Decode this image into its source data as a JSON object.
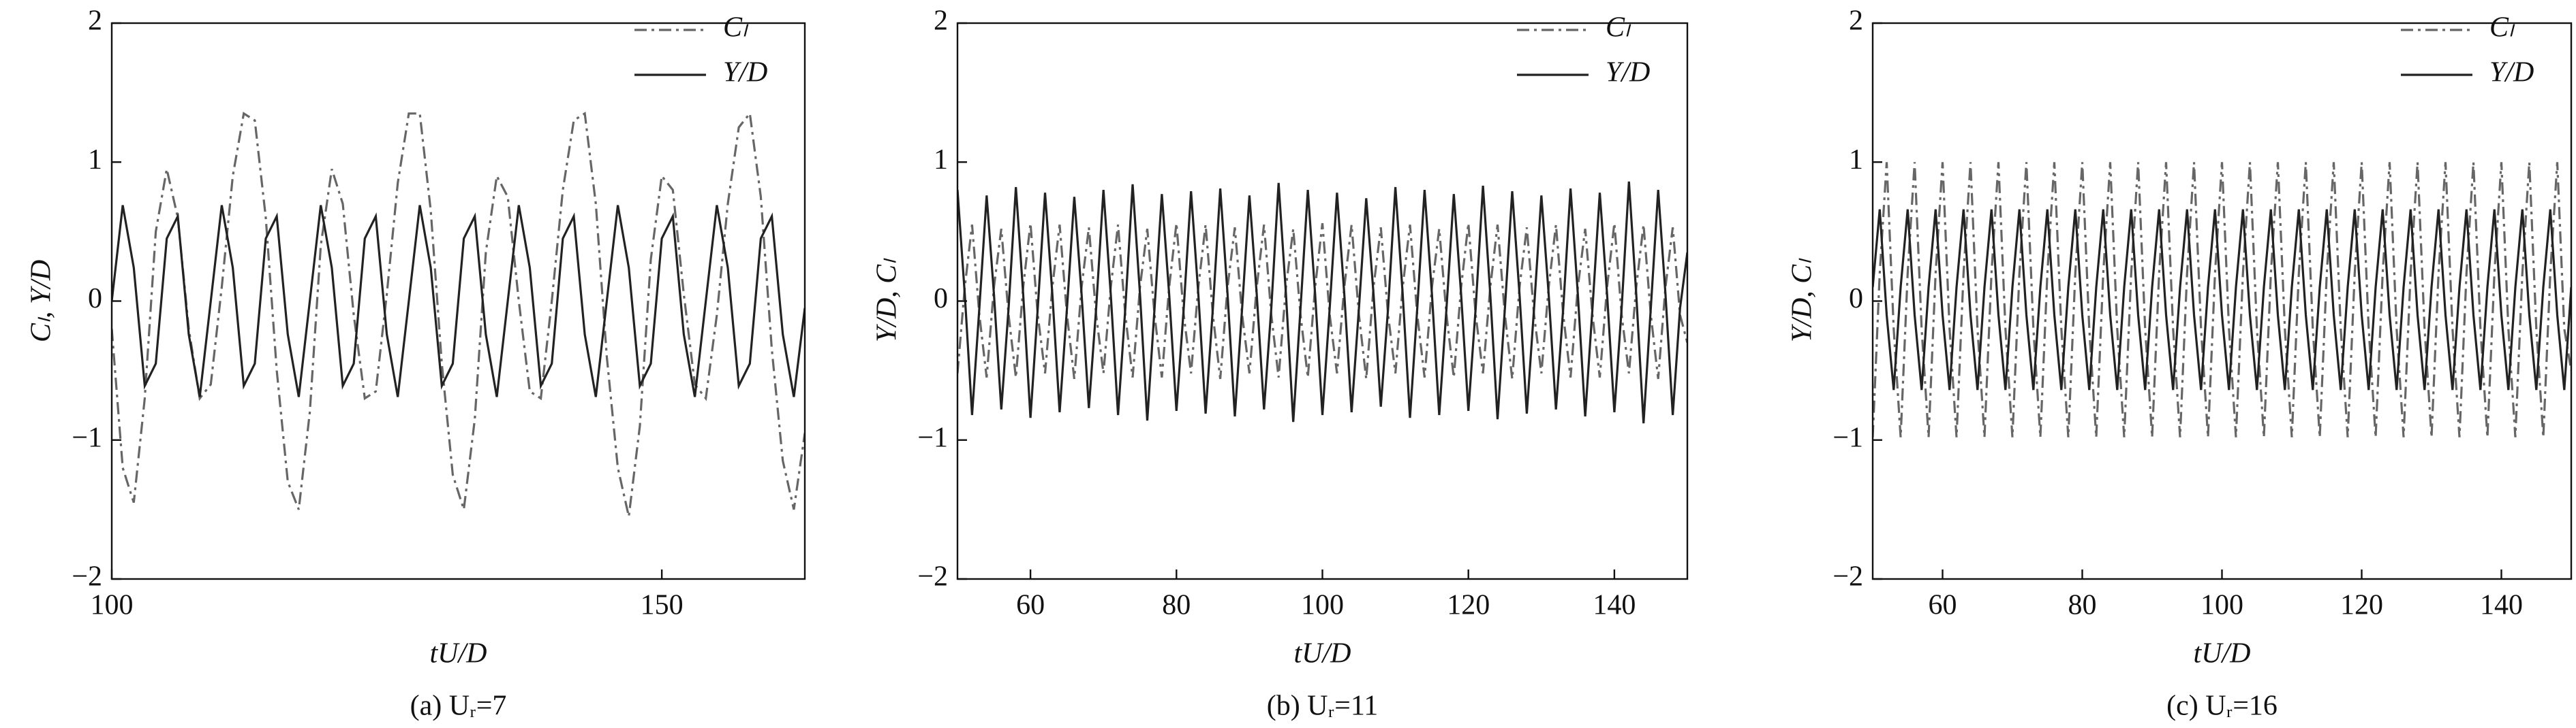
{
  "chart_data": [
    {
      "type": "line",
      "ylabel": "Cₗ, Y/D",
      "xlabel": "tU/D",
      "caption": "(a) Uᵣ=7",
      "legend": "upper right",
      "xlim": [
        100,
        163
      ],
      "xticks": [
        100,
        150
      ],
      "ylim": [
        -2,
        2
      ],
      "yticks": [
        {
          "value": -2,
          "label": "−2"
        },
        {
          "value": -1,
          "label": "−1"
        },
        0,
        1,
        2
      ],
      "x": [
        100,
        101,
        102,
        103,
        104,
        105,
        106,
        107,
        108,
        109,
        110,
        111,
        112,
        113,
        114,
        115,
        116,
        117,
        118,
        119,
        120,
        121,
        122,
        123,
        124,
        125,
        126,
        127,
        128,
        129,
        130,
        131,
        132,
        133,
        134,
        135,
        136,
        137,
        138,
        139,
        140,
        141,
        142,
        143,
        144,
        145,
        146,
        147,
        148,
        149,
        150,
        151,
        152,
        153,
        154,
        155,
        156,
        157,
        158,
        159,
        160,
        161,
        162,
        163
      ],
      "series": [
        {
          "name": "Cₗ",
          "color": "#666666",
          "dash": "dashdot",
          "values": [
            -0.2,
            -1.2,
            -1.45,
            -0.7,
            0.5,
            0.95,
            0.6,
            -0.2,
            -0.7,
            -0.6,
            0.1,
            0.9,
            1.35,
            1.3,
            0.6,
            -0.5,
            -1.3,
            -1.5,
            -0.8,
            0.4,
            0.95,
            0.7,
            -0.1,
            -0.7,
            -0.65,
            0.05,
            0.85,
            1.35,
            1.35,
            0.65,
            -0.45,
            -1.25,
            -1.5,
            -0.85,
            0.35,
            0.9,
            0.75,
            0,
            -0.65,
            -0.7,
            0,
            0.8,
            1.3,
            1.35,
            0.7,
            -0.4,
            -1.2,
            -1.55,
            -0.9,
            0.3,
            0.9,
            0.8,
            0.05,
            -0.6,
            -0.7,
            -0.1,
            0.7,
            1.25,
            1.35,
            0.75,
            -0.35,
            -1.15,
            -1.5,
            -0.95
          ]
        },
        {
          "name": "Y/D",
          "color": "#222222",
          "dash": "solid",
          "values": [
            0,
            0.69,
            0.24,
            -0.61,
            -0.45,
            0.45,
            0.61,
            -0.24,
            -0.69,
            0,
            0.69,
            0.24,
            -0.61,
            -0.45,
            0.45,
            0.61,
            -0.24,
            -0.69,
            0,
            0.69,
            0.24,
            -0.61,
            -0.45,
            0.45,
            0.61,
            -0.24,
            -0.69,
            0,
            0.69,
            0.24,
            -0.61,
            -0.45,
            0.45,
            0.61,
            -0.24,
            -0.69,
            0,
            0.69,
            0.24,
            -0.61,
            -0.45,
            0.45,
            0.61,
            -0.24,
            -0.69,
            0,
            0.69,
            0.24,
            -0.61,
            -0.45,
            0.45,
            0.61,
            -0.24,
            -0.69,
            0,
            0.69,
            0.24,
            -0.61,
            -0.45,
            0.45,
            0.61,
            -0.24,
            -0.69,
            -0.05
          ]
        }
      ]
    },
    {
      "type": "line",
      "ylabel": "Y/D, Cₗ",
      "xlabel": "tU/D",
      "caption": "(b) Uᵣ=11",
      "legend": "upper right",
      "xlim": [
        50,
        150
      ],
      "xticks": [
        60,
        80,
        100,
        120,
        140
      ],
      "ylim": [
        -2,
        2
      ],
      "yticks": [
        {
          "value": -2,
          "label": "−2"
        },
        {
          "value": -1,
          "label": "−1"
        },
        0,
        1,
        2
      ],
      "x": [
        50,
        51,
        52,
        53,
        54,
        55,
        56,
        57,
        58,
        59,
        60,
        61,
        62,
        63,
        64,
        65,
        66,
        67,
        68,
        69,
        70,
        71,
        72,
        73,
        74,
        75,
        76,
        77,
        78,
        79,
        80,
        81,
        82,
        83,
        84,
        85,
        86,
        87,
        88,
        89,
        90,
        91,
        92,
        93,
        94,
        95,
        96,
        97,
        98,
        99,
        100,
        101,
        102,
        103,
        104,
        105,
        106,
        107,
        108,
        109,
        110,
        111,
        112,
        113,
        114,
        115,
        116,
        117,
        118,
        119,
        120,
        121,
        122,
        123,
        124,
        125,
        126,
        127,
        128,
        129,
        130,
        131,
        132,
        133,
        134,
        135,
        136,
        137,
        138,
        139,
        140,
        141,
        142,
        143,
        144,
        145,
        146,
        147,
        148,
        149,
        150
      ],
      "series": [
        {
          "name": "Cₗ",
          "color": "#666666",
          "dash": "dashdot",
          "values": [
            -0.52,
            0.1,
            0.55,
            -0.1,
            -0.55,
            0.1,
            0.52,
            -0.1,
            -0.55,
            0.1,
            0.56,
            -0.1,
            -0.52,
            0.1,
            0.55,
            -0.1,
            -0.56,
            0.1,
            0.53,
            -0.1,
            -0.52,
            0.1,
            0.55,
            -0.1,
            -0.55,
            0.1,
            0.52,
            -0.1,
            -0.55,
            0.1,
            0.56,
            -0.1,
            -0.52,
            0.1,
            0.55,
            -0.1,
            -0.56,
            0.1,
            0.53,
            -0.1,
            -0.52,
            0.1,
            0.55,
            -0.1,
            -0.55,
            0.1,
            0.52,
            -0.1,
            -0.55,
            0.1,
            0.56,
            -0.1,
            -0.52,
            0.1,
            0.55,
            -0.1,
            -0.56,
            0.1,
            0.53,
            -0.1,
            -0.52,
            0.1,
            0.55,
            -0.1,
            -0.55,
            0.1,
            0.52,
            -0.1,
            -0.55,
            0.1,
            0.56,
            -0.1,
            -0.52,
            0.1,
            0.55,
            -0.1,
            -0.56,
            0.1,
            0.53,
            -0.1,
            -0.52,
            0.1,
            0.55,
            -0.1,
            -0.55,
            0.1,
            0.52,
            -0.1,
            -0.55,
            0.1,
            0.56,
            -0.1,
            -0.52,
            0.1,
            0.55,
            -0.1,
            -0.56,
            0.1,
            0.53,
            -0.1,
            -0.3
          ]
        },
        {
          "name": "Y/D",
          "color": "#222222",
          "dash": "solid",
          "values": [
            0.8,
            0.05,
            -0.82,
            -0.05,
            0.76,
            0.05,
            -0.78,
            -0.05,
            0.82,
            0.05,
            -0.84,
            -0.05,
            0.78,
            0.05,
            -0.8,
            -0.05,
            0.75,
            0.05,
            -0.77,
            -0.05,
            0.8,
            0.05,
            -0.82,
            -0.05,
            0.84,
            0.05,
            -0.86,
            -0.05,
            0.77,
            0.05,
            -0.79,
            -0.05,
            0.79,
            0.05,
            -0.81,
            -0.05,
            0.81,
            0.05,
            -0.83,
            -0.05,
            0.76,
            0.05,
            -0.78,
            -0.05,
            0.85,
            0.05,
            -0.87,
            -0.05,
            0.8,
            0.05,
            -0.82,
            -0.05,
            0.78,
            0.05,
            -0.8,
            -0.05,
            0.74,
            0.05,
            -0.76,
            -0.05,
            0.82,
            0.05,
            -0.84,
            -0.05,
            0.8,
            0.05,
            -0.82,
            -0.05,
            0.77,
            0.05,
            -0.79,
            -0.05,
            0.83,
            0.05,
            -0.85,
            -0.05,
            0.79,
            0.05,
            -0.81,
            -0.05,
            0.76,
            0.05,
            -0.78,
            -0.05,
            0.81,
            0.05,
            -0.83,
            -0.05,
            0.78,
            0.05,
            -0.8,
            -0.05,
            0.86,
            0.05,
            -0.88,
            -0.05,
            0.8,
            0.05,
            -0.82,
            -0.05,
            0.35
          ]
        }
      ]
    },
    {
      "type": "line",
      "ylabel": "Y/D, Cₗ",
      "xlabel": "tU/D",
      "caption": "(c) Uᵣ=16",
      "legend": "upper right",
      "xlim": [
        50,
        150
      ],
      "xticks": [
        60,
        80,
        100,
        120,
        140
      ],
      "ylim": [
        -2,
        2
      ],
      "yticks": [
        {
          "value": -2,
          "label": "−2"
        },
        {
          "value": -1,
          "label": "−1"
        },
        0,
        1,
        2
      ],
      "x": [
        50,
        51,
        52,
        53,
        54,
        55,
        56,
        57,
        58,
        59,
        60,
        61,
        62,
        63,
        64,
        65,
        66,
        67,
        68,
        69,
        70,
        71,
        72,
        73,
        74,
        75,
        76,
        77,
        78,
        79,
        80,
        81,
        82,
        83,
        84,
        85,
        86,
        87,
        88,
        89,
        90,
        91,
        92,
        93,
        94,
        95,
        96,
        97,
        98,
        99,
        100,
        101,
        102,
        103,
        104,
        105,
        106,
        107,
        108,
        109,
        110,
        111,
        112,
        113,
        114,
        115,
        116,
        117,
        118,
        119,
        120,
        121,
        122,
        123,
        124,
        125,
        126,
        127,
        128,
        129,
        130,
        131,
        132,
        133,
        134,
        135,
        136,
        137,
        138,
        139,
        140,
        141,
        142,
        143,
        144,
        145,
        146,
        147,
        148,
        149,
        150
      ],
      "series": [
        {
          "name": "Cₗ",
          "color": "#666666",
          "dash": "dashdot",
          "values": [
            -0.98,
            0.2,
            1.0,
            -0.2,
            -0.98,
            0.2,
            1.0,
            -0.2,
            -0.98,
            0.2,
            1.0,
            -0.2,
            -0.98,
            0.2,
            1.0,
            -0.2,
            -0.98,
            0.2,
            1.0,
            -0.2,
            -0.98,
            0.2,
            1.0,
            -0.2,
            -0.98,
            0.2,
            1.0,
            -0.2,
            -0.98,
            0.2,
            1.0,
            -0.2,
            -0.98,
            0.2,
            1.0,
            -0.2,
            -0.98,
            0.2,
            1.0,
            -0.2,
            -0.98,
            0.2,
            1.0,
            -0.2,
            -0.98,
            0.2,
            1.0,
            -0.2,
            -0.98,
            0.2,
            1.0,
            -0.2,
            -0.98,
            0.2,
            1.0,
            -0.2,
            -0.98,
            0.2,
            1.0,
            -0.2,
            -0.98,
            0.2,
            1.0,
            -0.2,
            -0.98,
            0.2,
            1.0,
            -0.2,
            -0.98,
            0.2,
            1.0,
            -0.2,
            -0.98,
            0.2,
            1.0,
            -0.2,
            -0.98,
            0.2,
            1.0,
            -0.2,
            -0.98,
            0.2,
            1.0,
            -0.2,
            -0.98,
            0.2,
            1.0,
            -0.2,
            -0.98,
            0.2,
            1.0,
            -0.2,
            -0.98,
            0.2,
            1.0,
            -0.2,
            -0.98,
            0.2,
            1.0,
            -0.2,
            -0.5
          ]
        },
        {
          "name": "Y/D",
          "color": "#222222",
          "dash": "solid",
          "values": [
            0.1,
            0.66,
            -0.1,
            -0.64,
            0.1,
            0.66,
            -0.1,
            -0.64,
            0.1,
            0.66,
            -0.1,
            -0.64,
            0.1,
            0.66,
            -0.1,
            -0.64,
            0.1,
            0.66,
            -0.1,
            -0.64,
            0.1,
            0.66,
            -0.1,
            -0.64,
            0.1,
            0.66,
            -0.1,
            -0.64,
            0.1,
            0.66,
            -0.1,
            -0.64,
            0.1,
            0.66,
            -0.1,
            -0.64,
            0.1,
            0.66,
            -0.1,
            -0.64,
            0.1,
            0.66,
            -0.1,
            -0.64,
            0.1,
            0.66,
            -0.1,
            -0.64,
            0.1,
            0.66,
            -0.1,
            -0.64,
            0.1,
            0.66,
            -0.1,
            -0.64,
            0.1,
            0.66,
            -0.1,
            -0.64,
            0.1,
            0.66,
            -0.1,
            -0.64,
            0.1,
            0.66,
            -0.1,
            -0.64,
            0.1,
            0.66,
            -0.1,
            -0.64,
            0.1,
            0.66,
            -0.1,
            -0.64,
            0.1,
            0.66,
            -0.1,
            -0.64,
            0.1,
            0.66,
            -0.1,
            -0.64,
            0.1,
            0.66,
            -0.1,
            -0.64,
            0.1,
            0.66,
            -0.1,
            -0.64,
            0.1,
            0.66,
            -0.1,
            -0.64,
            0.1,
            0.66,
            -0.1,
            -0.64,
            0.1
          ]
        }
      ]
    }
  ]
}
